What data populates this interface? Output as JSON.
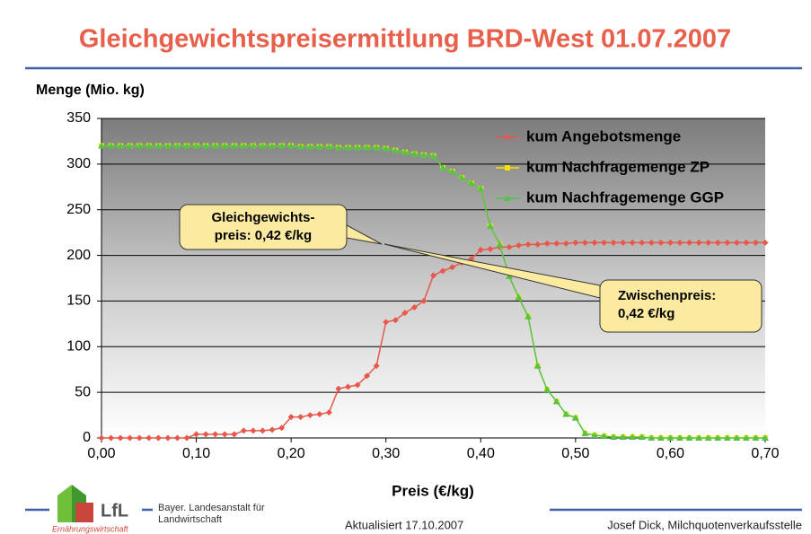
{
  "chart_data": {
    "type": "line",
    "title": "Gleichgewichtspreisermittlung BRD-West 01.07.2007",
    "y_label": "Menge (Mio. kg)",
    "x_label": "Preis (€/kg)",
    "x": [
      0,
      0.01,
      0.02,
      0.03,
      0.04,
      0.05,
      0.06,
      0.07,
      0.08,
      0.09,
      0.1,
      0.11,
      0.12,
      0.13,
      0.14,
      0.15,
      0.16,
      0.17,
      0.18,
      0.19,
      0.2,
      0.21,
      0.22,
      0.23,
      0.24,
      0.25,
      0.26,
      0.27,
      0.28,
      0.29,
      0.3,
      0.31,
      0.32,
      0.33,
      0.34,
      0.35,
      0.36,
      0.37,
      0.38,
      0.39,
      0.4,
      0.41,
      0.42,
      0.43,
      0.44,
      0.45,
      0.46,
      0.47,
      0.48,
      0.49,
      0.5,
      0.51,
      0.52,
      0.53,
      0.54,
      0.55,
      0.56,
      0.57,
      0.58,
      0.59,
      0.6,
      0.61,
      0.62,
      0.63,
      0.64,
      0.65,
      0.66,
      0.67,
      0.68,
      0.69,
      0.7
    ],
    "series": [
      {
        "name": "kum Angebotsmenge",
        "color": "#e8574a",
        "marker": "diamond",
        "values": [
          0,
          0,
          0,
          0,
          0,
          0,
          0,
          0,
          0,
          0,
          4,
          4,
          4,
          4,
          4,
          8,
          8,
          8,
          9,
          11,
          23,
          23,
          25,
          26,
          28,
          54,
          56,
          58,
          68,
          79,
          127,
          129,
          137,
          143,
          150,
          178,
          183,
          187,
          192,
          196,
          206,
          207,
          209,
          209,
          211,
          212,
          212,
          213,
          213,
          213,
          214,
          214,
          214,
          214,
          214,
          214,
          214,
          214,
          214,
          214,
          214,
          214,
          214,
          214,
          214,
          214,
          214,
          214,
          214,
          214,
          214
        ]
      },
      {
        "name": "kum Nachfragemenge ZP",
        "color": "#f2e200",
        "marker": "square",
        "values": [
          320,
          320,
          320,
          320,
          320,
          320,
          320,
          320,
          320,
          320,
          320,
          320,
          320,
          320,
          320,
          320,
          320,
          320,
          320,
          320,
          320,
          319,
          319,
          319,
          319,
          318,
          318,
          318,
          318,
          318,
          317,
          315,
          313,
          311,
          310,
          309,
          296,
          292,
          285,
          279,
          273,
          232,
          212,
          177,
          154,
          133,
          79,
          53,
          40,
          26,
          22,
          5,
          3,
          2,
          1,
          1,
          1,
          1,
          0,
          0,
          0,
          0,
          0,
          0,
          0,
          0,
          0,
          0,
          0,
          0,
          0
        ]
      },
      {
        "name": "kum Nachfragemenge GGP",
        "color": "#55c24a",
        "marker": "triangle",
        "values": [
          320,
          320,
          320,
          320,
          320,
          320,
          320,
          320,
          320,
          320,
          320,
          320,
          320,
          320,
          320,
          320,
          320,
          320,
          320,
          320,
          320,
          319,
          319,
          319,
          319,
          318,
          318,
          318,
          318,
          318,
          317,
          315,
          313,
          311,
          310,
          309,
          296,
          292,
          285,
          279,
          273,
          232,
          212,
          177,
          154,
          133,
          79,
          53,
          40,
          26,
          22,
          5,
          3,
          2,
          1,
          1,
          1,
          1,
          0,
          0,
          0,
          0,
          0,
          0,
          0,
          0,
          0,
          0,
          0,
          0,
          0
        ]
      }
    ],
    "xlim": [
      0,
      0.7
    ],
    "xticks": [
      {
        "value": 0,
        "label": "0,00"
      },
      {
        "value": 0.1,
        "label": "0,10"
      },
      {
        "value": 0.2,
        "label": "0,20"
      },
      {
        "value": 0.3,
        "label": "0,30"
      },
      {
        "value": 0.4,
        "label": "0,40"
      },
      {
        "value": 0.5,
        "label": "0,50"
      },
      {
        "value": 0.6,
        "label": "0,60"
      },
      {
        "value": 0.7,
        "label": "0,70"
      }
    ],
    "ylim": [
      0,
      350
    ],
    "yticks": [
      0,
      50,
      100,
      150,
      200,
      250,
      300,
      350
    ],
    "grid": true,
    "legend": "upper right",
    "annotations": [
      {
        "lines": [
          "Gleichgewichts-",
          "preis:  0,42 €/kg"
        ]
      },
      {
        "lines": [
          "Zwischenpreis:",
          "0,42 €/kg"
        ]
      }
    ]
  },
  "footer": {
    "logo": "LfL",
    "logo_sub": "Ernährungswirtschaft",
    "institute": [
      "Bayer. Landesanstalt für",
      "Landwirtschaft"
    ],
    "updated": "Aktualisiert 17.10.2007",
    "author": "Josef Dick, Milchquotenverkaufsstelle"
  }
}
